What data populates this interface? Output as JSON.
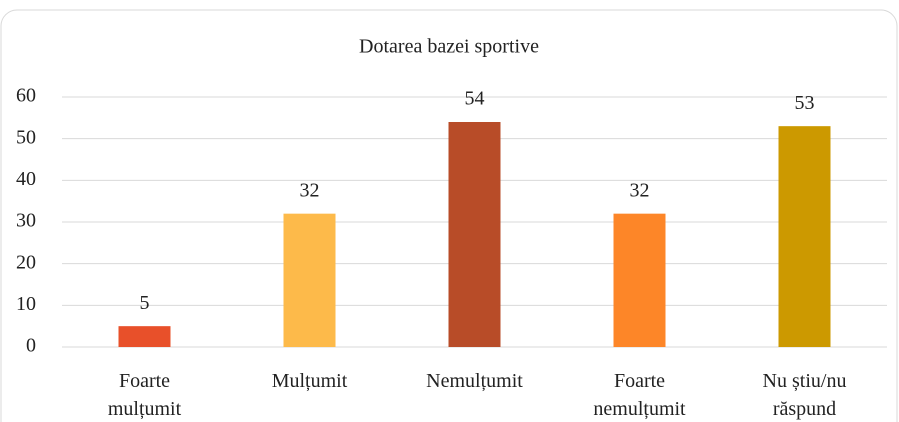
{
  "chart_data": {
    "type": "bar",
    "title": "Dotarea bazei sportive",
    "categories": [
      "Foarte\nmulțumit",
      "Mulțumit",
      "Nemulțumit",
      "Foarte\nnemulțumit",
      "Nu știu/nu\nrăspund"
    ],
    "values": [
      5,
      32,
      54,
      32,
      53
    ],
    "colors": [
      "#e8502a",
      "#fdba4a",
      "#b84c28",
      "#fd8628",
      "#cc9900"
    ],
    "ylim": [
      0,
      60
    ],
    "yticks": [
      0,
      10,
      20,
      30,
      40,
      50,
      60
    ],
    "grid": true
  }
}
